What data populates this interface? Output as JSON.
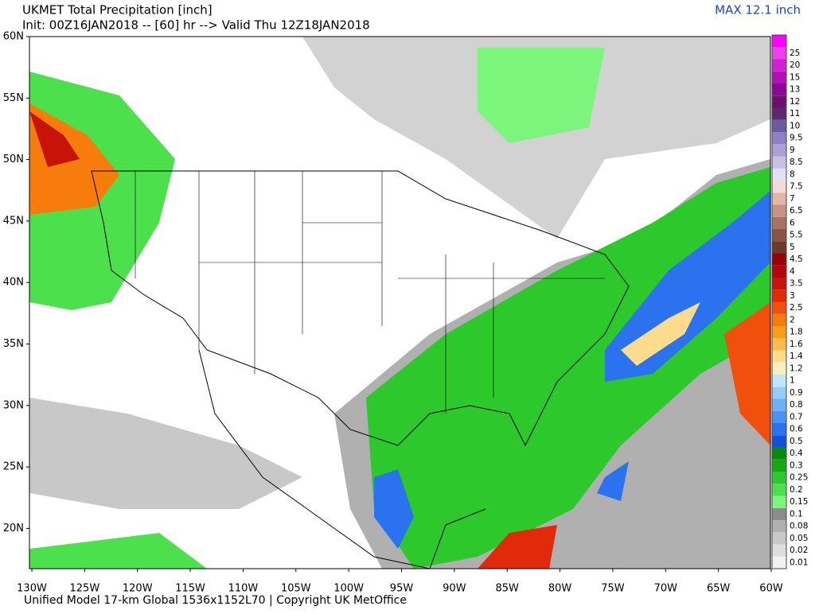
{
  "header": {
    "title": "UKMET Total Precipitation [inch]",
    "subtitle": "Init: 00Z16JAN2018 -- [60] hr --> Valid Thu 12Z18JAN2018",
    "max": "MAX 12.1 inch"
  },
  "footer": "Unified Model 17-km Global 1536x1152L70 | Copyright UK MetOffice",
  "lat_labels": [
    "60N",
    "55N",
    "50N",
    "45N",
    "40N",
    "35N",
    "30N",
    "25N",
    "20N"
  ],
  "lon_labels": [
    "130W",
    "125W",
    "120W",
    "115W",
    "110W",
    "105W",
    "100W",
    "95W",
    "90W",
    "85W",
    "80W",
    "75W",
    "70W",
    "65W",
    "60W"
  ],
  "colorbar": {
    "top_color": "#ff00ff",
    "levels": [
      {
        "label": "0.01",
        "color": "#f2f2f2"
      },
      {
        "label": "0.02",
        "color": "#dedede"
      },
      {
        "label": "0.05",
        "color": "#c8c8c8"
      },
      {
        "label": "0.08",
        "color": "#b0b0b0"
      },
      {
        "label": "0.1",
        "color": "#8c8c8c"
      },
      {
        "label": "0.15",
        "color": "#7cf57c"
      },
      {
        "label": "0.2",
        "color": "#4de04d"
      },
      {
        "label": "0.25",
        "color": "#2cc82c"
      },
      {
        "label": "0.3",
        "color": "#16a816"
      },
      {
        "label": "0.4",
        "color": "#0a8a0a"
      },
      {
        "label": "0.5",
        "color": "#1450dc"
      },
      {
        "label": "0.6",
        "color": "#2a72ee"
      },
      {
        "label": "0.7",
        "color": "#4a92f4"
      },
      {
        "label": "0.8",
        "color": "#6eb0f8"
      },
      {
        "label": "0.9",
        "color": "#96ccfa"
      },
      {
        "label": "1",
        "color": "#bde8fb"
      },
      {
        "label": "1.2",
        "color": "#f8f0c0"
      },
      {
        "label": "1.4",
        "color": "#fcdc8c"
      },
      {
        "label": "1.6",
        "color": "#fcbc4c"
      },
      {
        "label": "1.8",
        "color": "#fc9c1c"
      },
      {
        "label": "2",
        "color": "#f87c0c"
      },
      {
        "label": "2.5",
        "color": "#f0500c"
      },
      {
        "label": "3",
        "color": "#e02a0a"
      },
      {
        "label": "3.5",
        "color": "#c81408"
      },
      {
        "label": "4",
        "color": "#b00808"
      },
      {
        "label": "4.5",
        "color": "#940404"
      },
      {
        "label": "5",
        "color": "#6c3a2c"
      },
      {
        "label": "5.5",
        "color": "#8a5444"
      },
      {
        "label": "6",
        "color": "#a87262"
      },
      {
        "label": "6.5",
        "color": "#c49484"
      },
      {
        "label": "7",
        "color": "#e0b8aa"
      },
      {
        "label": "7.5",
        "color": "#f4dcd4"
      },
      {
        "label": "8",
        "color": "#e4e0f4"
      },
      {
        "label": "8.5",
        "color": "#c8c0e6"
      },
      {
        "label": "9",
        "color": "#aca0d6"
      },
      {
        "label": "9.5",
        "color": "#8e80c4"
      },
      {
        "label": "10",
        "color": "#6c5a9e"
      },
      {
        "label": "11",
        "color": "#5a2a6e"
      },
      {
        "label": "12",
        "color": "#6e1070"
      },
      {
        "label": "13",
        "color": "#8c0890"
      },
      {
        "label": "15",
        "color": "#b010b4"
      },
      {
        "label": "20",
        "color": "#d020d4"
      },
      {
        "label": "25",
        "color": "#ec40ec"
      }
    ]
  }
}
